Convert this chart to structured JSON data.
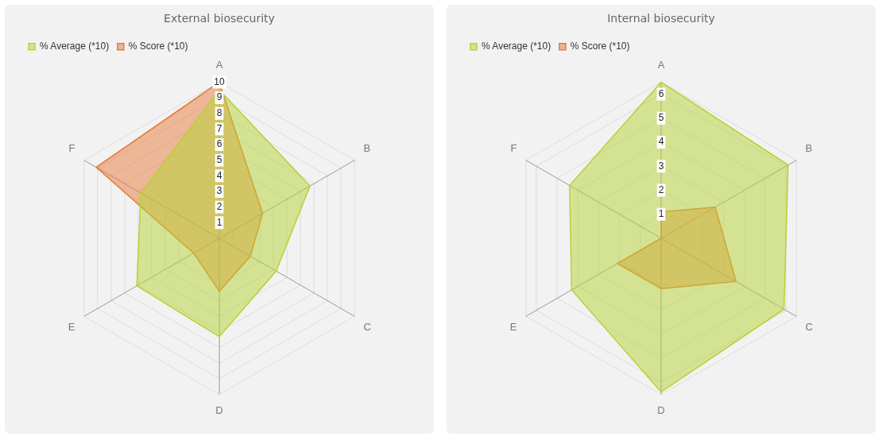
{
  "chart_data": [
    {
      "type": "radar",
      "title": "External biosecurity",
      "categories": [
        "A",
        "B",
        "C",
        "D",
        "E",
        "F"
      ],
      "series": [
        {
          "name": "% Average (*10)",
          "color": "#b5d334",
          "values": [
            9.5,
            6.7,
            4.2,
            6.3,
            6.1,
            5.8
          ]
        },
        {
          "name": "% Score (*10)",
          "color": "#e5793b",
          "values": [
            10,
            3.2,
            2.3,
            3.4,
            1.9,
            9.1
          ]
        }
      ],
      "ylim": [
        0,
        10
      ],
      "yticks": [
        1,
        2,
        3,
        4,
        5,
        6,
        7,
        8,
        9,
        10
      ],
      "grid": true,
      "legend": "top left"
    },
    {
      "type": "radar",
      "title": "Internal biosecurity",
      "categories": [
        "A",
        "B",
        "C",
        "D",
        "E",
        "F"
      ],
      "series": [
        {
          "name": "% Average (*10)",
          "color": "#b5d334",
          "values": [
            6.5,
            6.1,
            5.9,
            6.4,
            4.3,
            4.4
          ]
        },
        {
          "name": "% Score (*10)",
          "color": "#e5793b",
          "values": [
            1.1,
            2.6,
            3.6,
            2.1,
            2.1,
            0
          ]
        }
      ],
      "ylim": [
        0,
        6.5
      ],
      "yticks": [
        1,
        2,
        3,
        4,
        5,
        6
      ],
      "grid": true,
      "legend": "top left"
    }
  ]
}
